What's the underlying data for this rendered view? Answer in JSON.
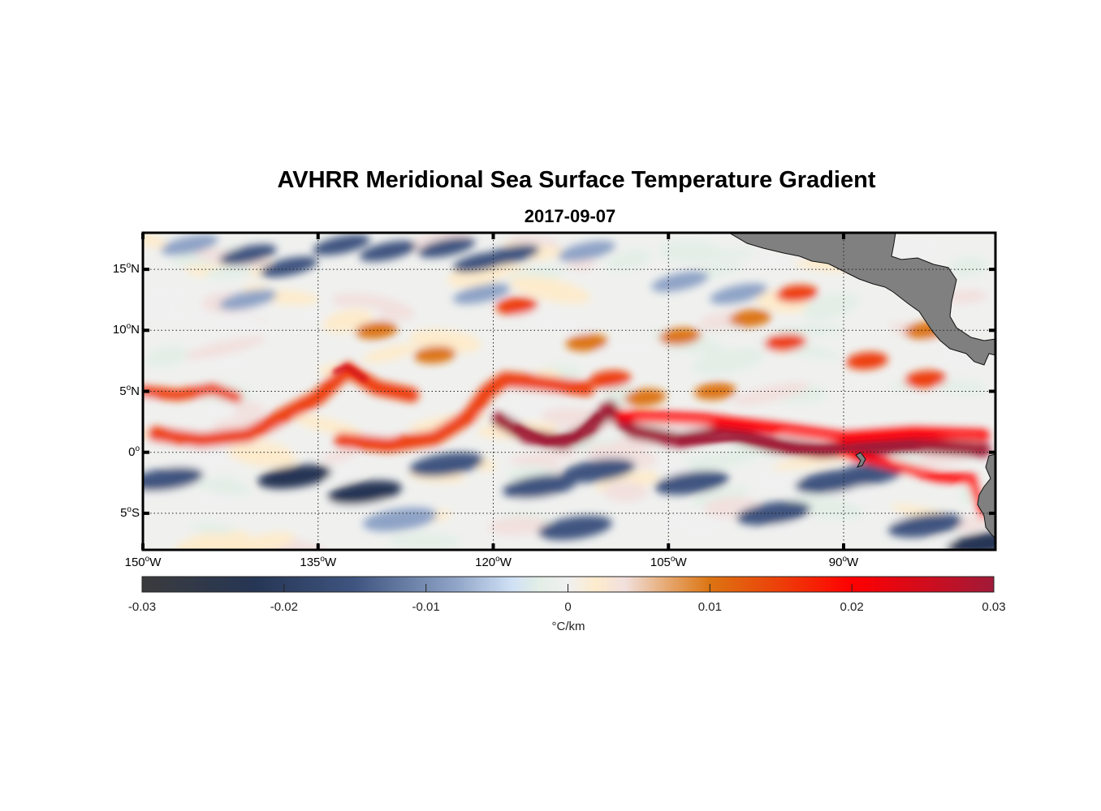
{
  "chart_data": {
    "type": "heatmap",
    "title": "AVHRR Meridional Sea Surface Temperature Gradient",
    "subtitle": "2017-09-07",
    "xlabel": "",
    "ylabel": "",
    "x_range": [
      -150,
      -77
    ],
    "y_range": [
      -8,
      18
    ],
    "x_ticks": [
      {
        "value": -150,
        "num": "150",
        "suffix": "W"
      },
      {
        "value": -135,
        "num": "135",
        "suffix": "W"
      },
      {
        "value": -120,
        "num": "120",
        "suffix": "W"
      },
      {
        "value": -105,
        "num": "105",
        "suffix": "W"
      },
      {
        "value": -90,
        "num": "90",
        "suffix": "W"
      }
    ],
    "y_ticks": [
      {
        "value": 15,
        "num": "15",
        "suffix": "N"
      },
      {
        "value": 10,
        "num": "10",
        "suffix": "N"
      },
      {
        "value": 5,
        "num": "5",
        "suffix": "N"
      },
      {
        "value": 0,
        "num": "0",
        "suffix": ""
      },
      {
        "value": -5,
        "num": "5",
        "suffix": "S"
      }
    ],
    "grid": true,
    "colorbar": {
      "placement": "bottom",
      "unit": "°C/km",
      "range": [
        -0.03,
        0.03
      ],
      "ticks": [
        -0.03,
        -0.02,
        -0.01,
        0,
        0.01,
        0.02,
        0.03
      ],
      "tick_labels": [
        "-0.03",
        "-0.02",
        "-0.01",
        "0",
        "0.01",
        "0.02",
        "0.03"
      ],
      "colors": [
        {
          "v": -0.03,
          "c": "#3b3b3d"
        },
        {
          "v": -0.022,
          "c": "#263655"
        },
        {
          "v": -0.015,
          "c": "#3f5580"
        },
        {
          "v": -0.008,
          "c": "#8ea3c6"
        },
        {
          "v": -0.004,
          "c": "#cfe0f5"
        },
        {
          "v": -0.002,
          "c": "#e3eee6"
        },
        {
          "v": 0,
          "c": "#f0f0f0"
        },
        {
          "v": 0.002,
          "c": "#fdebcc"
        },
        {
          "v": 0.004,
          "c": "#f1e0de"
        },
        {
          "v": 0.007,
          "c": "#e6a870"
        },
        {
          "v": 0.01,
          "c": "#dc7412"
        },
        {
          "v": 0.015,
          "c": "#ed3e09"
        },
        {
          "v": 0.02,
          "c": "#ff0000"
        },
        {
          "v": 0.025,
          "c": "#d20c1c"
        },
        {
          "v": 0.03,
          "c": "#a01a38"
        }
      ]
    },
    "features": {
      "equatorial_front": "strong positive gradient band (0.015–0.03 °C/km) along ~0–5°N with tropical instability wave cusps near 130°W, 118°W, 110°W",
      "negative_bands": "negative gradient bands (-0.01 to -0.025 °C/km) south of equator (~1–5°S) and north of 12°N",
      "land": "Central America (top right), Galapagos island near 91°W 0°, South America coast (right edge south of equator)"
    },
    "land_color": "#808080"
  }
}
